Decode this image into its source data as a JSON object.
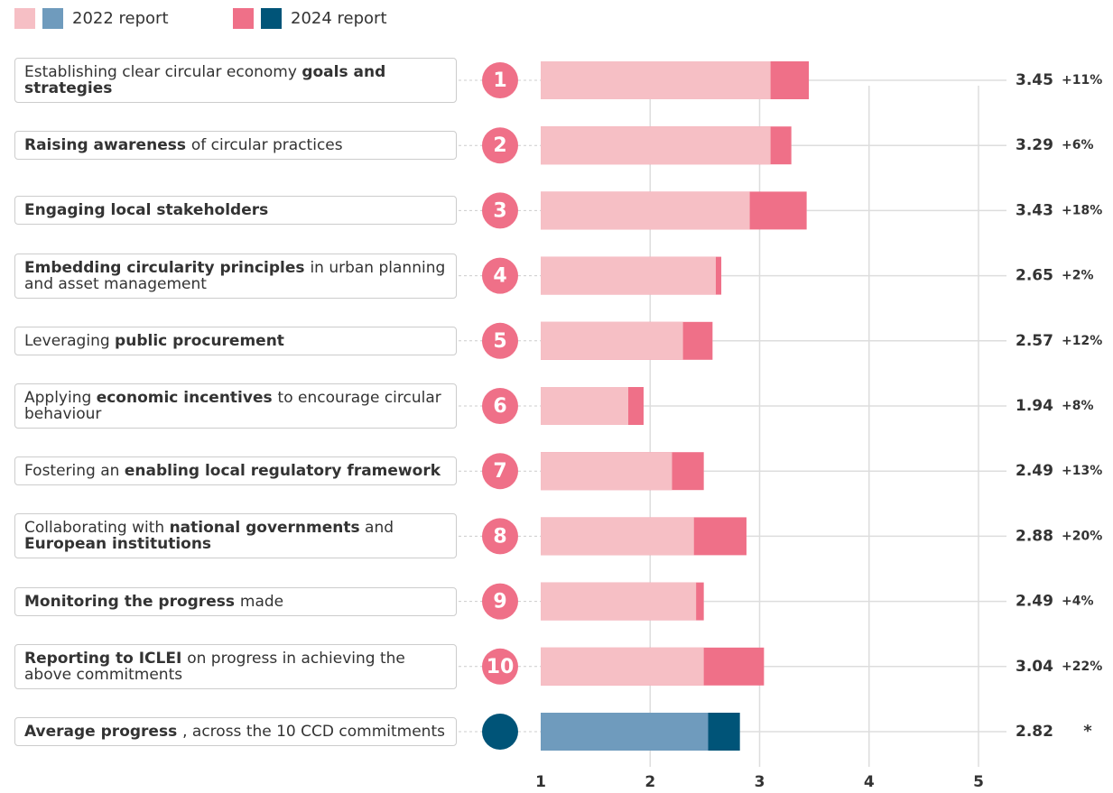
{
  "chart_data": {
    "type": "bar",
    "orientation": "horizontal",
    "categories": [
      [
        {
          "text": "Establishing clear circular economy ",
          "bold": false
        },
        {
          "text": "goals and strategies",
          "bold": true
        }
      ],
      [
        {
          "text": "Raising awareness ",
          "bold": true
        },
        {
          "text": " of circular practices",
          "bold": false
        }
      ],
      [
        {
          "text": "Engaging local stakeholders",
          "bold": true
        }
      ],
      [
        {
          "text": "Embedding circularity principles ",
          "bold": true
        },
        {
          "text": " in urban planning and asset management",
          "bold": false
        }
      ],
      [
        {
          "text": "Leveraging ",
          "bold": false
        },
        {
          "text": "public procurement",
          "bold": true
        }
      ],
      [
        {
          "text": "Applying ",
          "bold": false
        },
        {
          "text": "economic incentives ",
          "bold": true
        },
        {
          "text": " to encourage circular behaviour",
          "bold": false
        }
      ],
      [
        {
          "text": "Fostering an ",
          "bold": false
        },
        {
          "text": "enabling local regulatory framework",
          "bold": true
        }
      ],
      [
        {
          "text": "Collaborating with ",
          "bold": false
        },
        {
          "text": "national governments",
          "bold": true
        },
        {
          "text": " and ",
          "bold": false
        },
        {
          "text": "European institutions",
          "bold": true
        }
      ],
      [
        {
          "text": "Monitoring the progress ",
          "bold": true
        },
        {
          "text": "  made",
          "bold": false
        }
      ],
      [
        {
          "text": "Reporting to ICLEI ",
          "bold": true
        },
        {
          "text": " on progress in achieving the above commitments",
          "bold": false
        }
      ],
      [
        {
          "text": "Average progress ",
          "bold": true
        },
        {
          "text": ", across the 10 CCD commitments",
          "bold": false
        }
      ]
    ],
    "ranks": [
      1,
      2,
      3,
      4,
      5,
      6,
      7,
      8,
      9,
      10,
      null
    ],
    "series": [
      {
        "name": "2024 report",
        "color": "#ef7088",
        "average_color": "#005478",
        "values": [
          3.45,
          3.29,
          3.43,
          2.65,
          2.57,
          1.94,
          2.49,
          2.88,
          2.49,
          3.04,
          2.82
        ]
      },
      {
        "name": "2022 report",
        "color": "#f6bfc5",
        "average_color": "#6f9bbd",
        "values": [
          3.1,
          3.1,
          2.91,
          2.6,
          2.3,
          1.8,
          2.2,
          2.4,
          2.42,
          2.49,
          2.53
        ]
      }
    ],
    "changes": [
      "+11%",
      "+6%",
      "+18%",
      "+2%",
      "+12%",
      "+8%",
      "+13%",
      "+20%",
      "+4%",
      "+22%",
      "*"
    ],
    "xlim": [
      1,
      5
    ],
    "xticks": [
      1,
      2,
      3,
      4,
      5
    ],
    "grid": true
  }
}
